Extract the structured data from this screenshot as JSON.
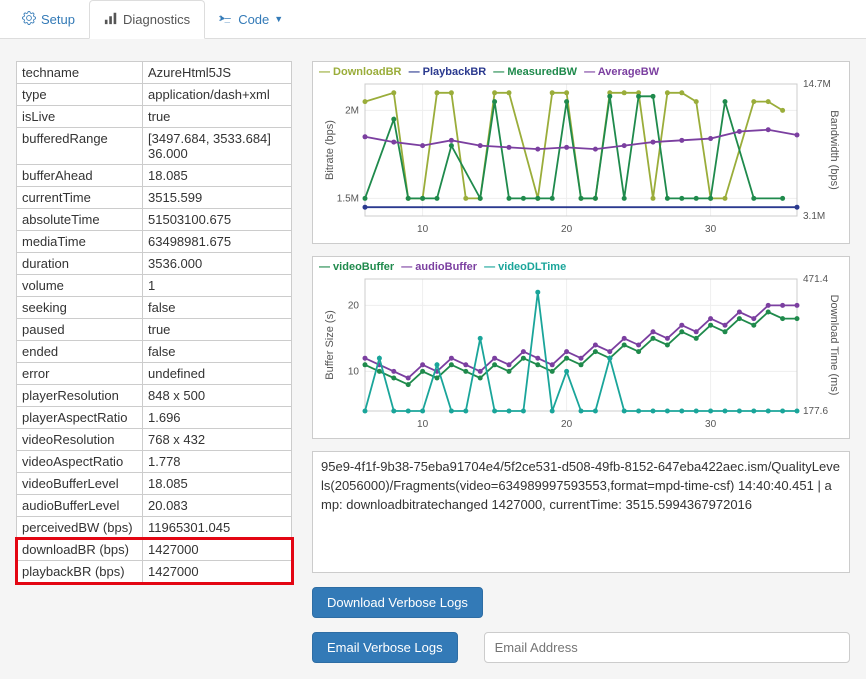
{
  "tabs": [
    {
      "label": "Setup",
      "icon": "gear"
    },
    {
      "label": "Diagnostics",
      "icon": "bars",
      "active": true
    },
    {
      "label": "Code",
      "icon": "terminal",
      "dropdown": true
    }
  ],
  "colors": {
    "tab_link": "#337ab7",
    "border": "#cccccc",
    "bg": "#f5f5f5",
    "highlight_border": "#e30613",
    "btn_bg": "#337ab7",
    "series": {
      "DownloadBR": "#9aad3a",
      "PlaybackBR": "#2b3a8f",
      "MeasuredBW": "#1f8a4c",
      "AverageBW": "#7b3fa0",
      "videoBuffer": "#1f8a4c",
      "audioBuffer": "#7b3fa0",
      "videoDLTime": "#1aa59a"
    }
  },
  "properties": [
    {
      "k": "techname",
      "v": "AzureHtml5JS"
    },
    {
      "k": "type",
      "v": "application/dash+xml"
    },
    {
      "k": "isLive",
      "v": "true"
    },
    {
      "k": "bufferedRange",
      "v": "[3497.684, 3533.684] 36.000"
    },
    {
      "k": "bufferAhead",
      "v": "18.085"
    },
    {
      "k": "currentTime",
      "v": "3515.599"
    },
    {
      "k": "absoluteTime",
      "v": "51503100.675"
    },
    {
      "k": "mediaTime",
      "v": "63498981.675"
    },
    {
      "k": "duration",
      "v": "3536.000"
    },
    {
      "k": "volume",
      "v": "1"
    },
    {
      "k": "seeking",
      "v": "false"
    },
    {
      "k": "paused",
      "v": "true"
    },
    {
      "k": "ended",
      "v": "false"
    },
    {
      "k": "error",
      "v": "undefined"
    },
    {
      "k": "playerResolution",
      "v": "848 x 500"
    },
    {
      "k": "playerAspectRatio",
      "v": "1.696"
    },
    {
      "k": "videoResolution",
      "v": "768 x 432"
    },
    {
      "k": "videoAspectRatio",
      "v": "1.778"
    },
    {
      "k": "videoBufferLevel",
      "v": "18.085"
    },
    {
      "k": "audioBufferLevel",
      "v": "20.083"
    },
    {
      "k": "perceivedBW (bps)",
      "v": "11965301.045"
    },
    {
      "k": "downloadBR (bps)",
      "v": "1427000",
      "hl": true
    },
    {
      "k": "playbackBR (bps)",
      "v": "1427000",
      "hl": true
    }
  ],
  "chart1": {
    "legend": [
      "DownloadBR",
      "PlaybackBR",
      "MeasuredBW",
      "AverageBW"
    ],
    "y_left_label": "Bitrate (bps)",
    "y_right_label": "Bandwidth (bps)",
    "x_ticks": [
      10,
      20,
      30
    ],
    "y_left_ticks": [
      {
        "v": 1.5,
        "l": "1.5M"
      },
      {
        "v": 2.0,
        "l": "2M"
      }
    ],
    "y_right_ticks": [
      {
        "v": 3.1,
        "l": "3.1M"
      },
      {
        "v": 14.7,
        "l": "14.7M"
      }
    ],
    "xlim": [
      6,
      36
    ],
    "series": {
      "DownloadBR": [
        [
          6,
          2.05
        ],
        [
          8,
          2.1
        ],
        [
          9,
          1.5
        ],
        [
          10,
          1.5
        ],
        [
          11,
          2.1
        ],
        [
          12,
          2.1
        ],
        [
          13,
          1.5
        ],
        [
          14,
          1.5
        ],
        [
          15,
          2.1
        ],
        [
          16,
          2.1
        ],
        [
          18,
          1.5
        ],
        [
          19,
          2.1
        ],
        [
          20,
          2.1
        ],
        [
          21,
          1.5
        ],
        [
          22,
          1.5
        ],
        [
          23,
          2.1
        ],
        [
          24,
          2.1
        ],
        [
          25,
          2.1
        ],
        [
          26,
          1.5
        ],
        [
          27,
          2.1
        ],
        [
          28,
          2.1
        ],
        [
          29,
          2.05
        ],
        [
          30,
          1.5
        ],
        [
          31,
          1.5
        ],
        [
          33,
          2.05
        ],
        [
          34,
          2.05
        ],
        [
          35,
          2.0
        ]
      ],
      "PlaybackBR": [
        [
          6,
          1.45
        ],
        [
          36,
          1.45
        ]
      ],
      "MeasuredBW": [
        [
          6,
          1.5
        ],
        [
          8,
          1.95
        ],
        [
          9,
          1.5
        ],
        [
          10,
          1.5
        ],
        [
          11,
          1.5
        ],
        [
          12,
          1.8
        ],
        [
          14,
          1.5
        ],
        [
          15,
          2.05
        ],
        [
          16,
          1.5
        ],
        [
          17,
          1.5
        ],
        [
          18,
          1.5
        ],
        [
          19,
          1.5
        ],
        [
          20,
          2.05
        ],
        [
          21,
          1.5
        ],
        [
          22,
          1.5
        ],
        [
          23,
          2.08
        ],
        [
          24,
          1.5
        ],
        [
          25,
          2.08
        ],
        [
          26,
          2.08
        ],
        [
          27,
          1.5
        ],
        [
          28,
          1.5
        ],
        [
          29,
          1.5
        ],
        [
          30,
          1.5
        ],
        [
          31,
          2.05
        ],
        [
          33,
          1.5
        ],
        [
          35,
          1.5
        ]
      ],
      "AverageBW": [
        [
          6,
          1.85
        ],
        [
          8,
          1.82
        ],
        [
          10,
          1.8
        ],
        [
          12,
          1.83
        ],
        [
          14,
          1.8
        ],
        [
          16,
          1.79
        ],
        [
          18,
          1.78
        ],
        [
          20,
          1.79
        ],
        [
          22,
          1.78
        ],
        [
          24,
          1.8
        ],
        [
          26,
          1.82
        ],
        [
          28,
          1.83
        ],
        [
          30,
          1.84
        ],
        [
          32,
          1.88
        ],
        [
          34,
          1.89
        ],
        [
          36,
          1.86
        ]
      ]
    }
  },
  "chart2": {
    "legend": [
      "videoBuffer",
      "audioBuffer",
      "videoDLTime"
    ],
    "y_left_label": "Buffer Size (s)",
    "y_right_label": "Download Time (ms)",
    "x_ticks": [
      10,
      20,
      30
    ],
    "y_left_ticks": [
      {
        "v": 10,
        "l": "10"
      },
      {
        "v": 20,
        "l": "20"
      }
    ],
    "y_right_ticks": [
      {
        "v": 177.6,
        "l": "177.6"
      },
      {
        "v": 471.4,
        "l": "471.4"
      }
    ],
    "xlim": [
      6,
      36
    ],
    "ylim_left": [
      4,
      24
    ],
    "series": {
      "videoBuffer": [
        [
          6,
          11
        ],
        [
          7,
          10
        ],
        [
          8,
          9
        ],
        [
          9,
          8
        ],
        [
          10,
          10
        ],
        [
          11,
          9
        ],
        [
          12,
          11
        ],
        [
          13,
          10
        ],
        [
          14,
          9
        ],
        [
          15,
          11
        ],
        [
          16,
          10
        ],
        [
          17,
          12
        ],
        [
          18,
          11
        ],
        [
          19,
          10
        ],
        [
          20,
          12
        ],
        [
          21,
          11
        ],
        [
          22,
          13
        ],
        [
          23,
          12
        ],
        [
          24,
          14
        ],
        [
          25,
          13
        ],
        [
          26,
          15
        ],
        [
          27,
          14
        ],
        [
          28,
          16
        ],
        [
          29,
          15
        ],
        [
          30,
          17
        ],
        [
          31,
          16
        ],
        [
          32,
          18
        ],
        [
          33,
          17
        ],
        [
          34,
          19
        ],
        [
          35,
          18
        ],
        [
          36,
          18
        ]
      ],
      "audioBuffer": [
        [
          6,
          12
        ],
        [
          7,
          11
        ],
        [
          8,
          10
        ],
        [
          9,
          9
        ],
        [
          10,
          11
        ],
        [
          11,
          10
        ],
        [
          12,
          12
        ],
        [
          13,
          11
        ],
        [
          14,
          10
        ],
        [
          15,
          12
        ],
        [
          16,
          11
        ],
        [
          17,
          13
        ],
        [
          18,
          12
        ],
        [
          19,
          11
        ],
        [
          20,
          13
        ],
        [
          21,
          12
        ],
        [
          22,
          14
        ],
        [
          23,
          13
        ],
        [
          24,
          15
        ],
        [
          25,
          14
        ],
        [
          26,
          16
        ],
        [
          27,
          15
        ],
        [
          28,
          17
        ],
        [
          29,
          16
        ],
        [
          30,
          18
        ],
        [
          31,
          17
        ],
        [
          32,
          19
        ],
        [
          33,
          18
        ],
        [
          34,
          20
        ],
        [
          35,
          20
        ],
        [
          36,
          20
        ]
      ],
      "videoDLTime": [
        [
          6,
          4
        ],
        [
          7,
          12
        ],
        [
          8,
          4
        ],
        [
          9,
          4
        ],
        [
          10,
          4
        ],
        [
          11,
          11
        ],
        [
          12,
          4
        ],
        [
          13,
          4
        ],
        [
          14,
          15
        ],
        [
          15,
          4
        ],
        [
          16,
          4
        ],
        [
          17,
          4
        ],
        [
          18,
          22
        ],
        [
          19,
          4
        ],
        [
          20,
          10
        ],
        [
          21,
          4
        ],
        [
          22,
          4
        ],
        [
          23,
          12
        ],
        [
          24,
          4
        ],
        [
          25,
          4
        ],
        [
          26,
          4
        ],
        [
          27,
          4
        ],
        [
          28,
          4
        ],
        [
          29,
          4
        ],
        [
          30,
          4
        ],
        [
          31,
          4
        ],
        [
          32,
          4
        ],
        [
          33,
          4
        ],
        [
          34,
          4
        ],
        [
          35,
          4
        ],
        [
          36,
          4
        ]
      ]
    }
  },
  "log_text": "95e9-4f1f-9b38-75eba91704e4/5f2ce531-d508-49fb-8152-647eba422aec.ism/QualityLevels(2056000)/Fragments(video=634989997593553,format=mpd-time-csf)\n14:40:40.451 | amp: downloadbitratechanged 1427000, currentTime: 3515.5994367972016",
  "buttons": {
    "download": "Download Verbose Logs",
    "email": "Email Verbose Logs"
  },
  "email_placeholder": "Email Address"
}
